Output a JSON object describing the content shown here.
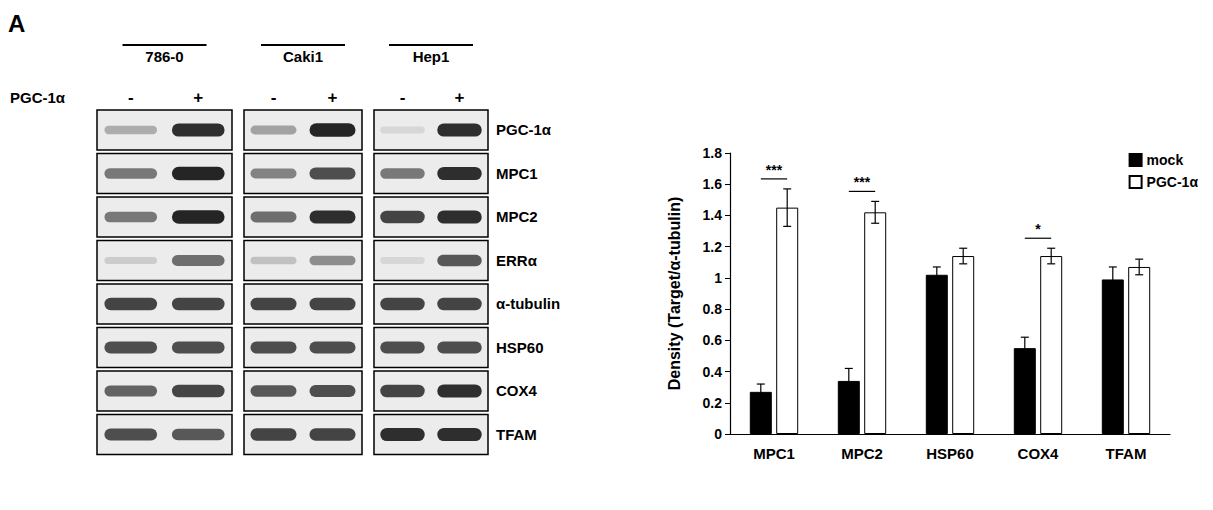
{
  "panel": "A",
  "blot": {
    "treatment_label": "PGC-1α",
    "groups": [
      {
        "name": "786-0",
        "lanes": [
          "-",
          "+"
        ]
      },
      {
        "name": "Caki1",
        "lanes": [
          "-",
          "+"
        ]
      },
      {
        "name": "Hep1",
        "lanes": [
          "-",
          "+"
        ]
      }
    ],
    "rows": [
      {
        "label": "PGC-1α",
        "intensity": [
          0.3,
          0.9,
          0.35,
          0.95,
          0.1,
          0.9
        ]
      },
      {
        "label": "MPC1",
        "intensity": [
          0.55,
          0.95,
          0.5,
          0.75,
          0.55,
          0.9
        ]
      },
      {
        "label": "MPC2",
        "intensity": [
          0.55,
          0.95,
          0.6,
          0.9,
          0.8,
          0.9
        ]
      },
      {
        "label": "ERRα",
        "intensity": [
          0.15,
          0.6,
          0.2,
          0.45,
          0.1,
          0.7
        ]
      },
      {
        "label": "α-tubulin",
        "intensity": [
          0.8,
          0.8,
          0.8,
          0.8,
          0.8,
          0.8
        ]
      },
      {
        "label": "HSP60",
        "intensity": [
          0.75,
          0.75,
          0.75,
          0.75,
          0.75,
          0.75
        ]
      },
      {
        "label": "COX4",
        "intensity": [
          0.65,
          0.8,
          0.7,
          0.75,
          0.8,
          0.9
        ]
      },
      {
        "label": "TFAM",
        "intensity": [
          0.75,
          0.7,
          0.8,
          0.8,
          0.9,
          0.9
        ]
      }
    ]
  },
  "chart_data": {
    "type": "bar",
    "y_label": "Density (Target/α-tubulin)",
    "categories": [
      "MPC1",
      "MPC2",
      "HSP60",
      "COX4",
      "TFAM"
    ],
    "series": [
      {
        "name": "mock",
        "color": "#000000",
        "values": [
          0.27,
          0.34,
          1.02,
          0.55,
          0.99
        ],
        "errors": [
          0.05,
          0.08,
          0.05,
          0.07,
          0.08
        ]
      },
      {
        "name": "PGC-1α",
        "color": "#ffffff",
        "values": [
          1.45,
          1.42,
          1.14,
          1.14,
          1.07
        ],
        "errors": [
          0.12,
          0.07,
          0.05,
          0.05,
          0.05
        ]
      }
    ],
    "annotations": [
      {
        "category": "MPC1",
        "text": "***"
      },
      {
        "category": "MPC2",
        "text": "***"
      },
      {
        "category": "COX4",
        "text": "*"
      }
    ],
    "ylim": [
      0,
      1.8
    ],
    "yticks": [
      0,
      0.2,
      0.4,
      0.6,
      0.8,
      1,
      1.2,
      1.4,
      1.6,
      1.8
    ],
    "grid": false,
    "legend": "upper right"
  }
}
